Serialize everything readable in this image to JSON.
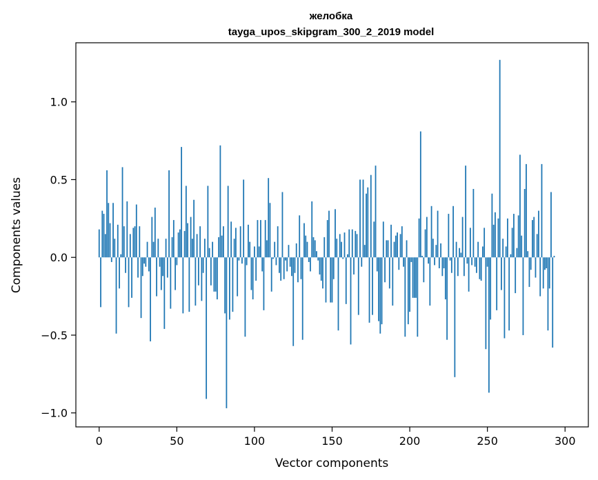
{
  "chart_data": {
    "type": "bar",
    "title": "желобка",
    "subtitle": "tayga_upos_skipgram_300_2_2019 model",
    "xlabel": "Vector components",
    "ylabel": "Components values",
    "xlim": [
      -15,
      315
    ],
    "ylim": [
      -1.09,
      1.38
    ],
    "xticks": [
      0,
      50,
      100,
      150,
      200,
      250,
      300
    ],
    "yticks": [
      -1.0,
      -0.5,
      0.0,
      0.5,
      1.0
    ],
    "ytick_labels": [
      "−1.0",
      "−0.5",
      "0.0",
      "0.5",
      "1.0"
    ],
    "xtick_labels": [
      "0",
      "50",
      "100",
      "150",
      "200",
      "250",
      "300"
    ],
    "bar_color": "#1f77b4",
    "grid": false,
    "values": [
      0.18,
      -0.32,
      0.3,
      0.28,
      0.15,
      0.56,
      0.35,
      0.22,
      -0.03,
      0.35,
      0.12,
      -0.49,
      0.21,
      -0.2,
      0.02,
      0.58,
      0.2,
      -0.1,
      0.36,
      -0.32,
      0.15,
      -0.26,
      0.19,
      0.2,
      0.34,
      -0.13,
      0.2,
      -0.39,
      -0.12,
      -0.04,
      -0.06,
      0.1,
      -0.09,
      -0.54,
      0.26,
      0.1,
      0.32,
      -0.25,
      0.12,
      -0.06,
      -0.21,
      -0.12,
      -0.46,
      0.12,
      -0.13,
      0.56,
      -0.33,
      0.13,
      0.24,
      -0.21,
      -0.05,
      0.16,
      0.18,
      0.71,
      -0.36,
      0.17,
      0.46,
      0.22,
      -0.35,
      0.26,
      0.12,
      0.37,
      -0.31,
      0.15,
      -0.18,
      0.2,
      -0.28,
      -0.1,
      0.12,
      -0.91,
      0.46,
      0.06,
      -0.18,
      0.1,
      -0.22,
      -0.22,
      -0.27,
      0.13,
      0.72,
      0.14,
      0.2,
      -0.36,
      -0.97,
      0.46,
      -0.4,
      0.23,
      -0.35,
      0.12,
      0.19,
      -0.25,
      -0.02,
      0.2,
      -0.04,
      0.5,
      -0.51,
      -0.05,
      0.21,
      0.1,
      -0.21,
      -0.27,
      0.07,
      -0.15,
      0.24,
      0.07,
      0.24,
      -0.09,
      -0.34,
      0.24,
      0.11,
      0.51,
      0.35,
      -0.22,
      -0.01,
      0.1,
      -0.05,
      0.2,
      -0.1,
      -0.15,
      0.42,
      -0.14,
      -0.02,
      -0.09,
      0.08,
      -0.06,
      -0.12,
      -0.57,
      -0.1,
      0.09,
      -0.16,
      0.27,
      -0.14,
      -0.53,
      0.22,
      0.14,
      0.1,
      -0.03,
      -0.09,
      0.36,
      0.13,
      0.11,
      0.04,
      -0.02,
      -0.11,
      -0.15,
      -0.2,
      0.13,
      -0.29,
      0.24,
      0.3,
      -0.29,
      -0.29,
      -0.14,
      0.31,
      0.12,
      -0.47,
      0.15,
      0.1,
      -0.01,
      0.16,
      -0.3,
      0.02,
      0.18,
      -0.56,
      0.18,
      -0.11,
      0.17,
      0.15,
      -0.37,
      0.5,
      -0.06,
      0.5,
      0.08,
      0.41,
      0.45,
      -0.42,
      0.53,
      -0.37,
      0.23,
      0.59,
      -0.09,
      -0.41,
      -0.49,
      -0.43,
      0.23,
      -0.16,
      0.11,
      0.11,
      -0.2,
      0.21,
      -0.31,
      0.1,
      0.14,
      0.16,
      -0.08,
      0.15,
      0.2,
      -0.06,
      -0.51,
      0.11,
      -0.43,
      -0.35,
      -0.03,
      -0.26,
      -0.26,
      -0.26,
      -0.51,
      0.25,
      0.81,
      0.01,
      -0.16,
      0.18,
      0.26,
      -0.04,
      -0.31,
      0.33,
      0.12,
      -0.05,
      0.08,
      0.3,
      -0.07,
      0.09,
      -0.12,
      -0.07,
      -0.27,
      -0.53,
      0.28,
      -0.02,
      -0.1,
      0.33,
      -0.77,
      0.1,
      -0.12,
      0.06,
      0.03,
      0.26,
      -0.12,
      0.59,
      -0.04,
      -0.22,
      0.19,
      -0.05,
      0.44,
      -0.06,
      -0.1,
      0.1,
      -0.14,
      -0.15,
      0.07,
      0.19,
      -0.59,
      -0.06,
      -0.87,
      -0.4,
      0.41,
      0.21,
      0.29,
      -0.34,
      0.25,
      1.27,
      -0.21,
      0.12,
      -0.52,
      0.07,
      0.25,
      -0.47,
      0.02,
      0.19,
      0.28,
      -0.23,
      0.06,
      0.27,
      0.66,
      0.14,
      -0.5,
      0.44,
      0.6,
      0.04,
      -0.19,
      -0.08,
      0.24,
      0.26,
      -0.13,
      0.15,
      0.3,
      -0.25,
      0.6,
      -0.2,
      -0.08,
      -0.07,
      -0.47,
      -0.2,
      0.42,
      -0.58,
      0.01
    ]
  }
}
